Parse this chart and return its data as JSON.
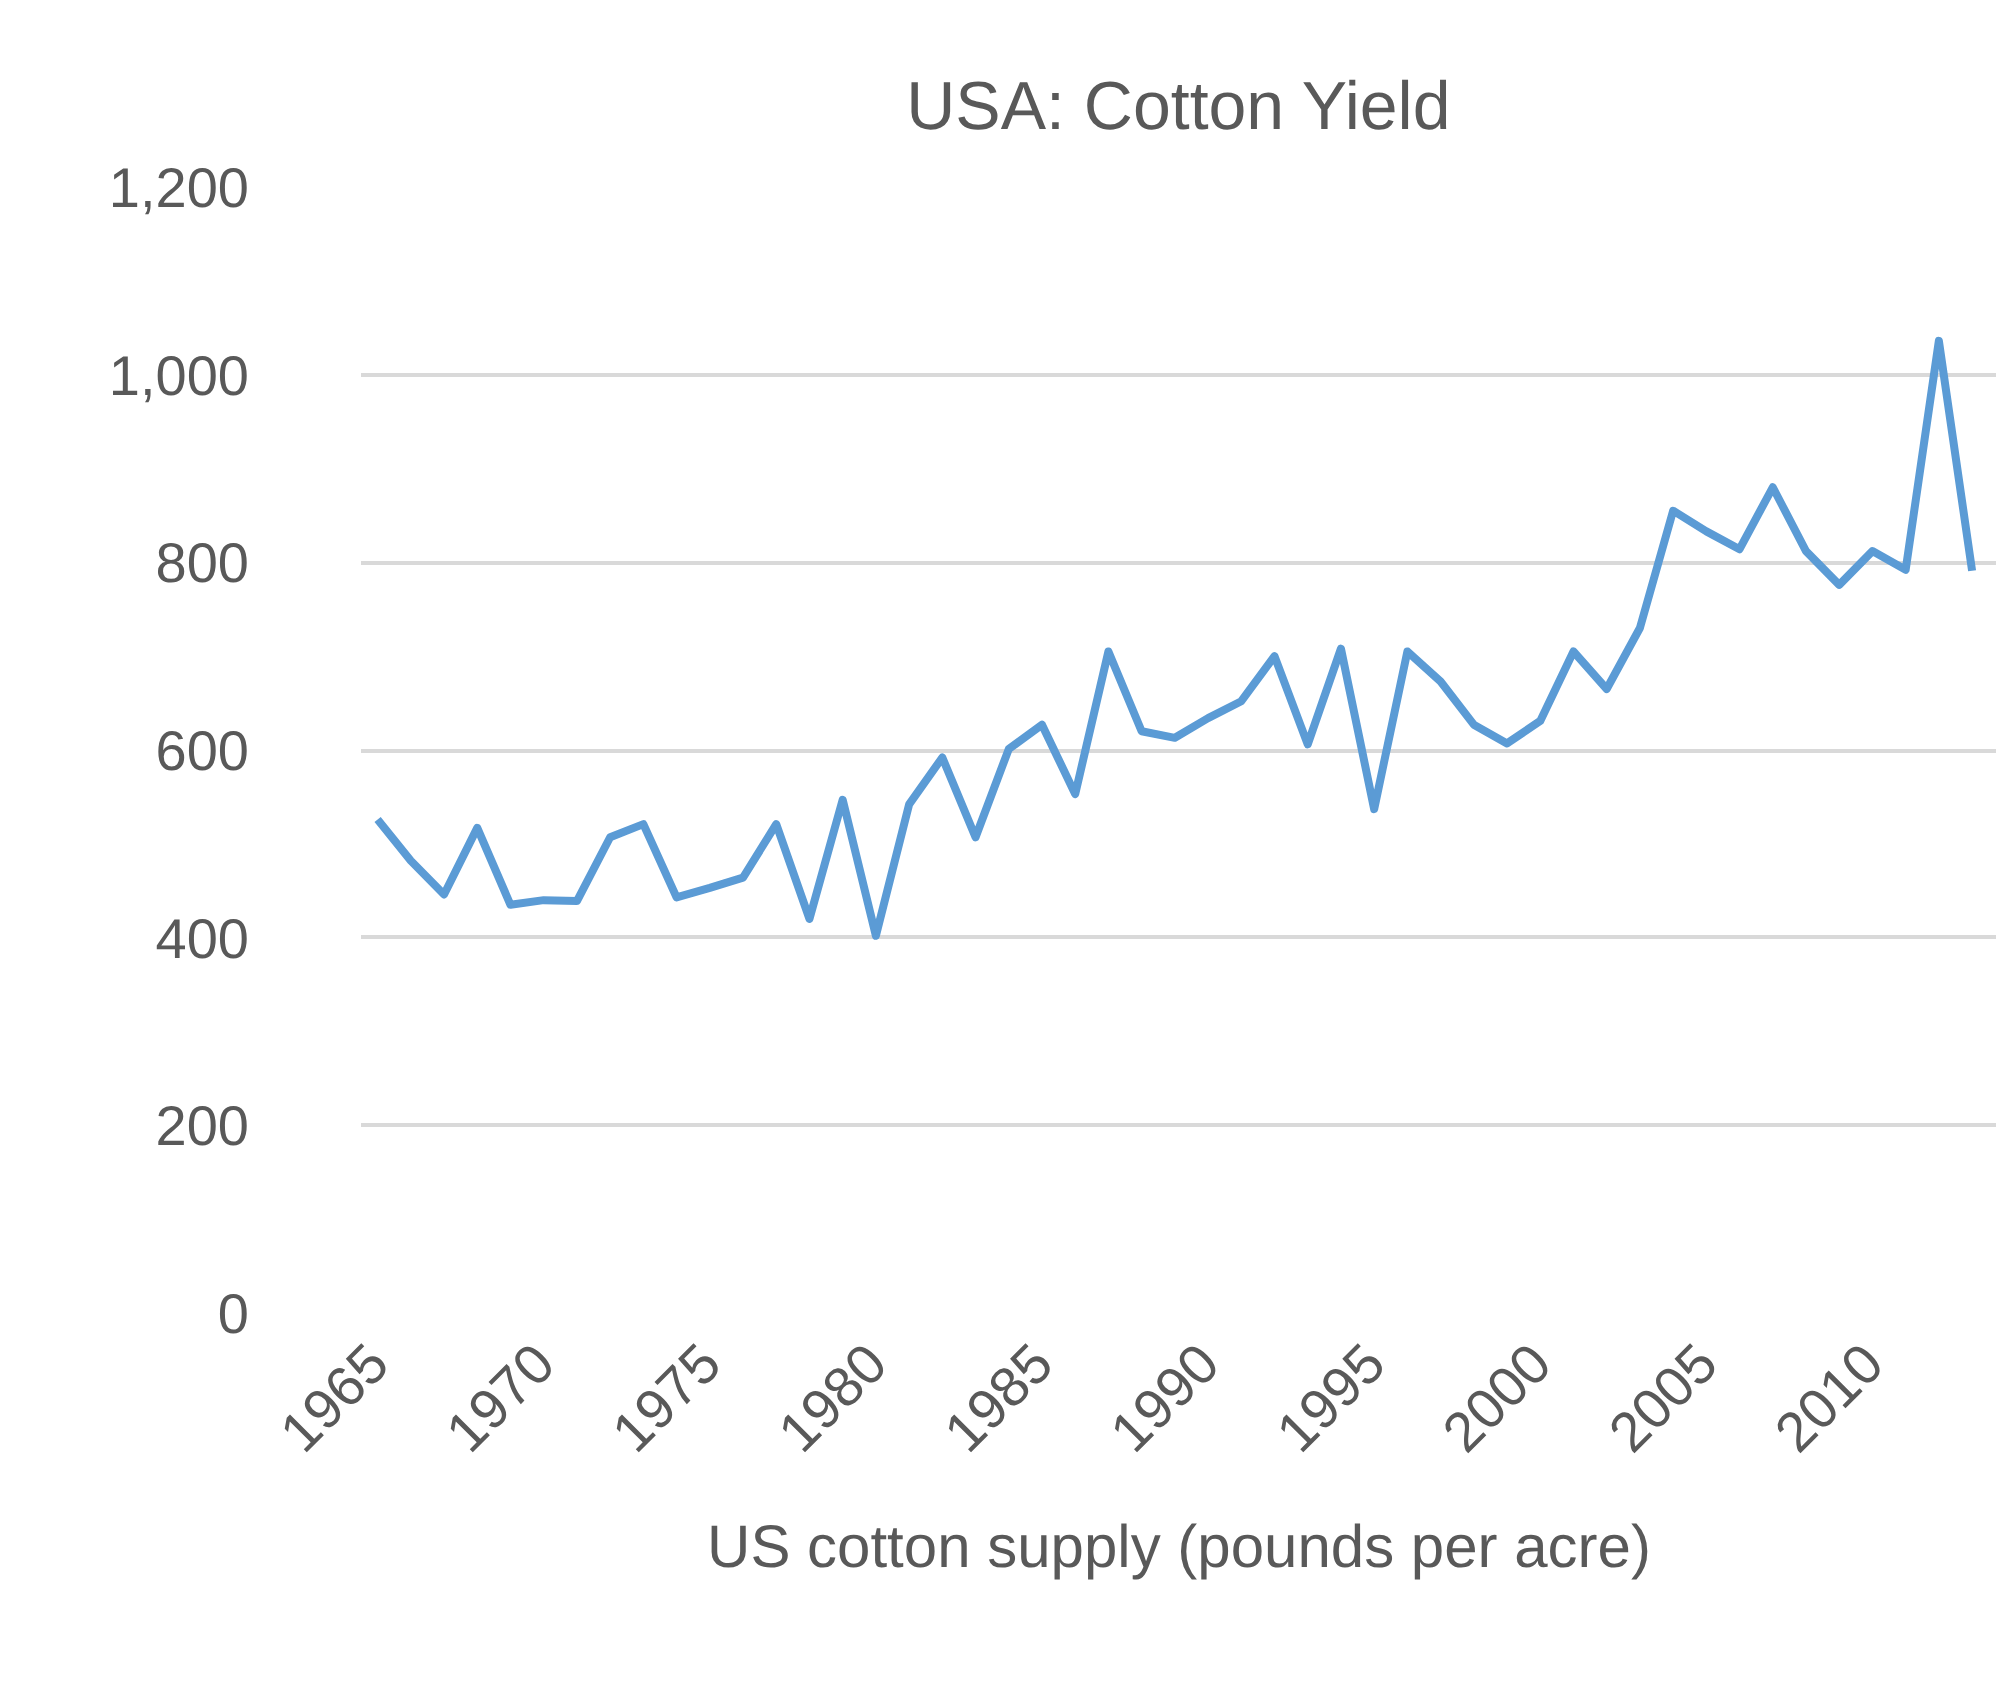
{
  "chart_data": {
    "type": "line",
    "title": "USA: Cotton Yield",
    "xlabel": "US cotton supply (pounds per acre)",
    "x": [
      1965,
      1966,
      1967,
      1968,
      1969,
      1970,
      1971,
      1972,
      1973,
      1974,
      1975,
      1976,
      1977,
      1978,
      1979,
      1980,
      1981,
      1982,
      1983,
      1984,
      1985,
      1986,
      1987,
      1988,
      1989,
      1990,
      1991,
      1992,
      1993,
      1994,
      1995,
      1996,
      1997,
      1998,
      1999,
      2000,
      2001,
      2002,
      2003,
      2004,
      2005,
      2006,
      2007,
      2008,
      2009,
      2010,
      2011,
      2012,
      2013
    ],
    "series": [
      {
        "color": "#5b9bd5",
        "values": [
          526,
          482,
          446,
          517,
          435,
          440,
          439,
          507,
          521,
          443,
          453,
          464,
          521,
          420,
          547,
          402,
          542,
          592,
          507,
          601,
          627,
          553,
          705,
          620,
          613,
          634,
          652,
          700,
          606,
          708,
          537,
          705,
          673,
          627,
          607,
          631,
          705,
          665,
          730,
          855,
          833,
          814,
          880,
          812,
          776,
          812,
          792,
          1036,
          791
        ]
      }
    ],
    "xlim": [
      1964.5,
      2013.75
    ],
    "xticks": [
      1965,
      1970,
      1975,
      1980,
      1985,
      1990,
      1995,
      2000,
      2005,
      2010
    ],
    "ylim": [
      0,
      1200
    ],
    "yticks": [
      {
        "value": 0,
        "label": "0"
      },
      {
        "value": 200,
        "label": "200"
      },
      {
        "value": 400,
        "label": "400"
      },
      {
        "value": 600,
        "label": "600"
      },
      {
        "value": 800,
        "label": "800"
      },
      {
        "value": 1000,
        "label": "1,000"
      },
      {
        "value": 1200,
        "label": "1,200"
      }
    ],
    "grid": "y",
    "marker": "none",
    "line_style": "solid"
  }
}
